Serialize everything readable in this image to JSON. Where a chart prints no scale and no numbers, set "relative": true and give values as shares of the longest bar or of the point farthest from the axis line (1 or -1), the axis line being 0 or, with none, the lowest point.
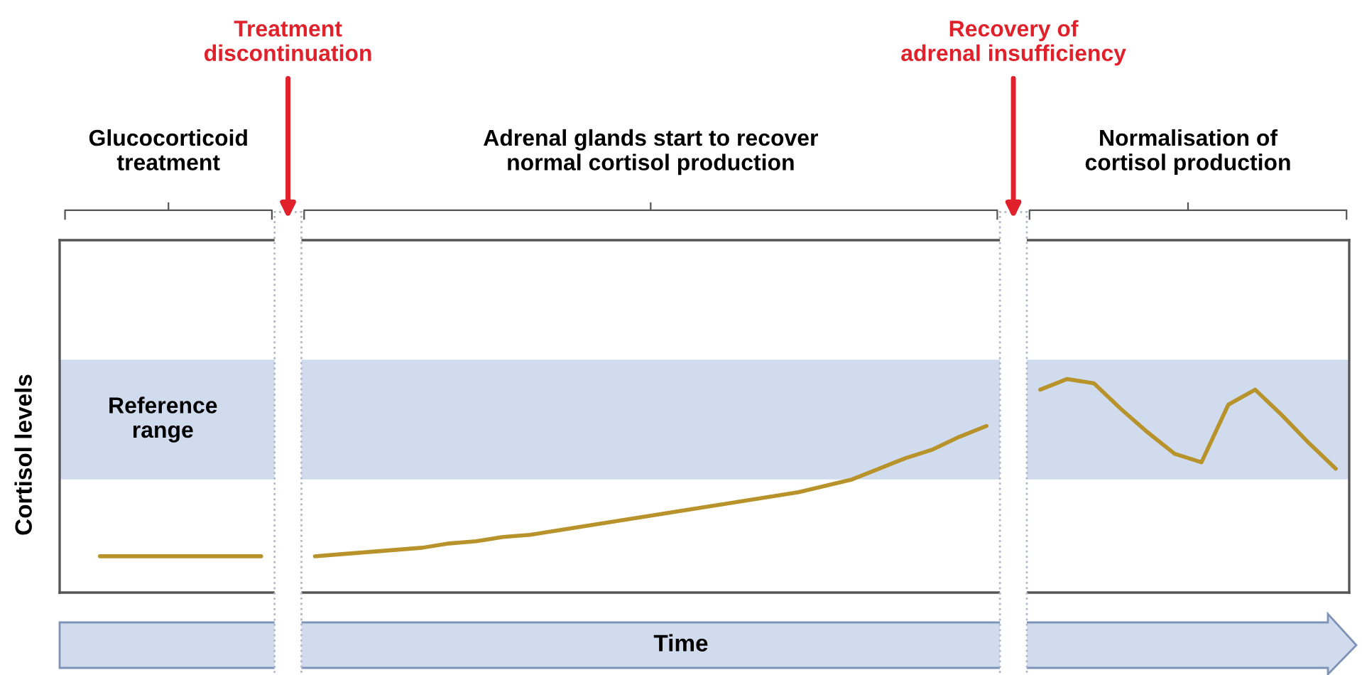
{
  "chart_data": {
    "type": "line",
    "relative": true,
    "xlabel": "Time",
    "ylabel": "Cortisol levels",
    "categories": [
      null,
      null,
      null,
      null,
      null,
      null,
      null,
      null,
      null,
      null,
      null,
      null,
      null,
      null,
      null,
      null,
      null,
      null,
      null,
      null,
      null,
      null,
      null,
      null,
      null,
      null,
      null,
      null,
      null,
      null,
      null,
      null,
      null,
      null,
      null,
      null,
      null,
      null,
      null,
      null,
      null,
      null,
      null,
      null,
      null,
      null,
      null,
      null
    ],
    "series": [
      {
        "color": "#b8922a",
        "values": [
          null,
          0.17,
          0.17,
          0.17,
          0.17,
          0.17,
          0.17,
          0.17,
          null,
          null,
          null,
          null,
          null,
          null,
          null,
          null,
          null,
          null,
          null,
          null,
          null,
          null,
          null,
          null,
          null,
          null,
          null,
          null,
          null,
          null,
          null,
          null,
          null,
          null,
          null,
          null,
          null,
          null,
          null,
          null,
          null,
          null,
          null,
          null,
          null,
          null,
          null,
          null
        ]
      },
      {
        "color": "#b8922a",
        "values": [
          null,
          null,
          null,
          null,
          null,
          null,
          null,
          null,
          null,
          0.17,
          0.18,
          0.19,
          0.2,
          0.21,
          0.23,
          0.24,
          0.26,
          0.27,
          0.29,
          0.31,
          0.33,
          0.35,
          0.37,
          0.39,
          0.41,
          0.43,
          0.45,
          0.47,
          0.5,
          0.53,
          0.58,
          0.63,
          0.67,
          0.73,
          0.78,
          null,
          null,
          null,
          null,
          null,
          null,
          null,
          null,
          null,
          null,
          null,
          null,
          null
        ]
      },
      {
        "color": "#b8922a",
        "values": [
          null,
          null,
          null,
          null,
          null,
          null,
          null,
          null,
          null,
          null,
          null,
          null,
          null,
          null,
          null,
          null,
          null,
          null,
          null,
          null,
          null,
          null,
          null,
          null,
          null,
          null,
          null,
          null,
          null,
          null,
          null,
          null,
          null,
          null,
          null,
          null,
          0.95,
          1.0,
          0.98,
          0.86,
          0.75,
          0.65,
          0.61,
          0.88,
          0.95,
          0.83,
          0.7,
          0.58
        ]
      }
    ],
    "bands": [
      {
        "axis": "y",
        "from": 0.53,
        "to": 1.09,
        "label": "Reference\nrange",
        "color": "#d0dcee"
      }
    ],
    "annotations": [
      "Glucocorticoid\ntreatment",
      "Adrenal glands start to recover\nnormal cortisol production",
      "Normalisation of\ncortisol production",
      "Treatment\ndiscontinuation",
      "Recovery of\nadrenal insufficiency"
    ]
  }
}
